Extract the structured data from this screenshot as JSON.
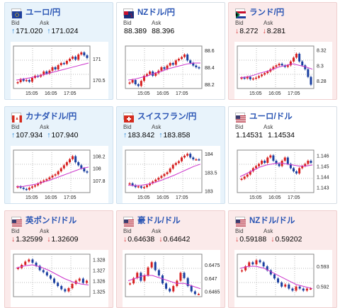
{
  "labels": {
    "bid": "Bid",
    "ask": "Ask"
  },
  "colors": {
    "up_bg": "#e8f3fb",
    "down_bg": "#fbeaea",
    "title": "#2a55b4",
    "up_arrow": "#1a7fd4",
    "down_arrow": "#d63030",
    "ma": "#cc33cc",
    "bull": "#1a3fa0",
    "bear": "#d72020"
  },
  "cards": [
    {
      "pair": "ユーロ/円",
      "flag": "eu-flag-icon",
      "trend": "up",
      "bid_arrow": "↑",
      "bid": "171.020",
      "ask_arrow": "↑",
      "ask": "171.024",
      "chart_data": {
        "type": "candlestick",
        "x_ticks": [
          "15:05",
          "16:05",
          "17:05"
        ],
        "y_ticks": [
          "171",
          "170.5"
        ],
        "ylim": [
          170.3,
          171.3
        ],
        "closes": [
          170.45,
          170.52,
          170.48,
          170.5,
          170.46,
          170.55,
          170.6,
          170.58,
          170.62,
          170.7,
          170.65,
          170.72,
          170.8,
          170.75,
          170.85,
          170.9,
          170.88,
          170.95,
          171.0,
          171.05,
          170.98,
          171.1,
          171.15,
          171.08,
          171.02
        ],
        "moving_average": [
          170.5,
          170.52,
          170.55,
          170.58,
          170.62,
          170.66,
          170.7,
          170.74,
          170.78,
          170.82,
          170.86,
          170.9
        ]
      }
    },
    {
      "pair": "NZドル/円",
      "flag": "nz-flag-icon",
      "trend": "flat",
      "bid_arrow": "",
      "bid": "88.389",
      "ask_arrow": "",
      "ask": "88.396",
      "chart_data": {
        "type": "candlestick",
        "x_ticks": [
          "15:05",
          "16:05",
          "17:05"
        ],
        "y_ticks": [
          "88.6",
          "88.4",
          "88.2"
        ],
        "ylim": [
          88.15,
          88.65
        ],
        "closes": [
          88.22,
          88.25,
          88.2,
          88.18,
          88.24,
          88.3,
          88.32,
          88.35,
          88.3,
          88.33,
          88.36,
          88.4,
          88.38,
          88.42,
          88.45,
          88.43,
          88.48,
          88.5,
          88.52,
          88.55,
          88.48,
          88.45,
          88.42,
          88.4,
          88.39
        ],
        "moving_average": [
          88.25,
          88.26,
          88.28,
          88.3,
          88.33,
          88.35,
          88.38,
          88.4,
          88.42,
          88.44,
          88.45,
          88.45
        ]
      }
    },
    {
      "pair": "ランド/円",
      "flag": "za-flag-icon",
      "trend": "down",
      "bid_arrow": "↓",
      "bid": "8.272",
      "ask_arrow": "↓",
      "ask": "8.281",
      "chart_data": {
        "type": "candlestick",
        "x_ticks": [
          "15:05",
          "16:05",
          "17:05"
        ],
        "y_ticks": [
          "8.32",
          "8.3",
          "8.28"
        ],
        "ylim": [
          8.27,
          8.325
        ],
        "closes": [
          8.284,
          8.283,
          8.285,
          8.282,
          8.283,
          8.284,
          8.286,
          8.288,
          8.29,
          8.292,
          8.295,
          8.298,
          8.3,
          8.302,
          8.3,
          8.298,
          8.3,
          8.305,
          8.31,
          8.315,
          8.305,
          8.3,
          8.295,
          8.285,
          8.275
        ],
        "moving_average": [
          8.284,
          8.285,
          8.287,
          8.29,
          8.292,
          8.295,
          8.298,
          8.3,
          8.302,
          8.3,
          8.298,
          8.295
        ]
      }
    },
    {
      "pair": "カナダドル/円",
      "flag": "ca-flag-icon",
      "trend": "up",
      "bid_arrow": "↑",
      "bid": "107.934",
      "ask_arrow": "↑",
      "ask": "107.940",
      "chart_data": {
        "type": "candlestick",
        "x_ticks": [
          "15:05",
          "16:05",
          "17:05"
        ],
        "y_ticks": [
          "108.2",
          "108",
          "107.8"
        ],
        "ylim": [
          107.6,
          108.3
        ],
        "closes": [
          107.7,
          107.68,
          107.66,
          107.65,
          107.68,
          107.7,
          107.72,
          107.75,
          107.78,
          107.8,
          107.82,
          107.85,
          107.88,
          107.9,
          107.95,
          108.0,
          108.05,
          108.1,
          108.15,
          108.2,
          108.1,
          108.05,
          108.0,
          107.95,
          107.93
        ],
        "moving_average": [
          107.7,
          107.7,
          107.72,
          107.74,
          107.77,
          107.8,
          107.84,
          107.88,
          107.92,
          107.96,
          108.0,
          108.02
        ]
      }
    },
    {
      "pair": "スイスフラン/円",
      "flag": "ch-flag-icon",
      "trend": "up",
      "bid_arrow": "↑",
      "bid": "183.842",
      "ask_arrow": "↑",
      "ask": "183.858",
      "chart_data": {
        "type": "candlestick",
        "x_ticks": [
          "15:05",
          "16:05",
          "17:05"
        ],
        "y_ticks": [
          "184",
          "183.5",
          "183"
        ],
        "ylim": [
          182.95,
          184.1
        ],
        "closes": [
          183.2,
          183.15,
          183.1,
          183.12,
          183.08,
          183.1,
          183.15,
          183.2,
          183.25,
          183.3,
          183.35,
          183.4,
          183.45,
          183.5,
          183.6,
          183.7,
          183.75,
          183.8,
          183.9,
          183.95,
          184.0,
          183.9,
          183.85,
          183.85,
          183.84
        ],
        "moving_average": [
          183.15,
          183.14,
          183.15,
          183.18,
          183.22,
          183.28,
          183.35,
          183.42,
          183.5,
          183.58,
          183.66,
          183.72
        ]
      }
    },
    {
      "pair": "ユーロ/ドル",
      "flag": "eu-us-flag-icon",
      "trend": "flat",
      "bid_arrow": "",
      "bid": "1.14531",
      "ask_arrow": "",
      "ask": "1.14534",
      "chart_data": {
        "type": "candlestick",
        "x_ticks": [
          "15:05",
          "16:05",
          "17:05"
        ],
        "y_ticks": [
          "1.146",
          "1.145",
          "1.144",
          "1.143"
        ],
        "ylim": [
          1.1425,
          1.1465
        ],
        "closes": [
          1.1438,
          1.144,
          1.1442,
          1.1445,
          1.1448,
          1.145,
          1.1452,
          1.1455,
          1.1453,
          1.1458,
          1.146,
          1.1455,
          1.1452,
          1.145,
          1.1455,
          1.1458,
          1.1452,
          1.1448,
          1.1445,
          1.1443,
          1.1448,
          1.145,
          1.1452,
          1.1455,
          1.1453
        ],
        "moving_average": [
          1.144,
          1.1443,
          1.1446,
          1.1449,
          1.1451,
          1.1452,
          1.1453,
          1.1452,
          1.1451,
          1.145,
          1.145,
          1.1451
        ]
      }
    },
    {
      "pair": "英ポンド/ドル",
      "flag": "uk-us-flag-icon",
      "trend": "down",
      "bid_arrow": "↓",
      "bid": "1.32599",
      "ask_arrow": "↓",
      "ask": "1.32609",
      "chart_data": {
        "type": "candlestick",
        "x_ticks": [],
        "y_ticks": [
          "1.328",
          "1.327",
          "1.326",
          "1.325"
        ],
        "ylim": [
          1.3245,
          1.3285
        ],
        "closes": [
          1.3272,
          1.3275,
          1.3278,
          1.328,
          1.3277,
          1.3274,
          1.327,
          1.3268,
          1.3265,
          1.3262,
          1.3258,
          1.3255,
          1.3252,
          1.325,
          1.3253,
          1.3257,
          1.326,
          1.3262,
          1.3258,
          1.326
        ],
        "moving_average": [
          1.3272,
          1.3274,
          1.3275,
          1.3273,
          1.327,
          1.3266,
          1.3262,
          1.3259,
          1.3257,
          1.3256
        ]
      }
    },
    {
      "pair": "豪ドル/ドル",
      "flag": "au-us-flag-icon",
      "trend": "down",
      "bid_arrow": "↓",
      "bid": "0.64638",
      "ask_arrow": "↓",
      "ask": "0.64642",
      "chart_data": {
        "type": "candlestick",
        "x_ticks": [],
        "y_ticks": [
          "0.6475",
          "0.647",
          "0.6465"
        ],
        "ylim": [
          0.6463,
          0.6479
        ],
        "closes": [
          0.6468,
          0.647,
          0.6472,
          0.6469,
          0.6471,
          0.6474,
          0.6476,
          0.6473,
          0.6471,
          0.6468,
          0.6466,
          0.6465,
          0.6467,
          0.6469,
          0.6472,
          0.647,
          0.6467,
          0.6465,
          0.6464,
          0.6464
        ],
        "moving_average": [
          0.6469,
          0.647,
          0.6471,
          0.6471,
          0.647,
          0.6469,
          0.6468,
          0.6468,
          0.6467,
          0.6466
        ]
      }
    },
    {
      "pair": "NZドル/ドル",
      "flag": "nz-us-flag-icon",
      "trend": "down",
      "bid_arrow": "↓",
      "bid": "0.59188",
      "ask_arrow": "↓",
      "ask": "0.59202",
      "chart_data": {
        "type": "candlestick",
        "x_ticks": [],
        "y_ticks": [
          "0.593",
          "0.592"
        ],
        "ylim": [
          0.5915,
          0.5936
        ],
        "closes": [
          0.5928,
          0.593,
          0.5932,
          0.5931,
          0.5933,
          0.5932,
          0.593,
          0.5928,
          0.5926,
          0.5924,
          0.5922,
          0.592,
          0.5921,
          0.5919,
          0.5918,
          0.592,
          0.5919,
          0.5918,
          0.5919,
          0.5919
        ],
        "moving_average": [
          0.5929,
          0.593,
          0.593,
          0.5929,
          0.5927,
          0.5925,
          0.5923,
          0.5921,
          0.592,
          0.5919
        ]
      }
    }
  ]
}
